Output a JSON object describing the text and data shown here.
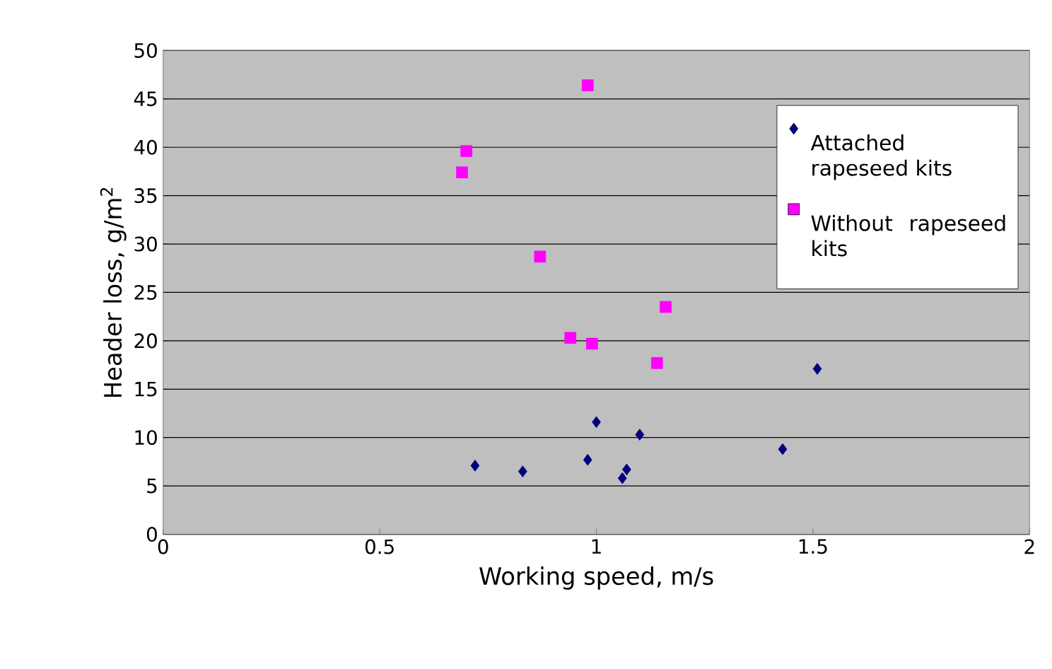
{
  "chart_data": {
    "type": "scatter",
    "xlabel": "Working speed, m/s",
    "ylabel": "Header loss, g/m$^{2}$",
    "xlim": [
      0,
      2
    ],
    "xticks": [
      0,
      0.5,
      1,
      1.5,
      2
    ],
    "ylim": [
      0,
      50
    ],
    "yticks": [
      0,
      5,
      10,
      15,
      20,
      25,
      30,
      35,
      40,
      45,
      50
    ],
    "grid": "y",
    "legend": "top right",
    "series": [
      {
        "name": "Attached rapeseed kits",
        "color": "#000080",
        "marker": "diamond",
        "x": [
          0.72,
          0.83,
          0.98,
          1.0,
          1.06,
          1.07,
          1.1,
          1.43,
          1.51
        ],
        "values": [
          7.1,
          6.5,
          7.7,
          11.6,
          5.8,
          6.7,
          10.3,
          8.8,
          17.1
        ]
      },
      {
        "name": "Without rapeseed kits",
        "color": "#ff00ff",
        "marker": "square",
        "x": [
          0.7,
          0.69,
          0.98,
          0.87,
          0.94,
          0.99,
          1.16,
          1.14
        ],
        "values": [
          39.6,
          37.4,
          46.4,
          28.7,
          20.3,
          19.7,
          23.5,
          17.7
        ]
      }
    ]
  }
}
